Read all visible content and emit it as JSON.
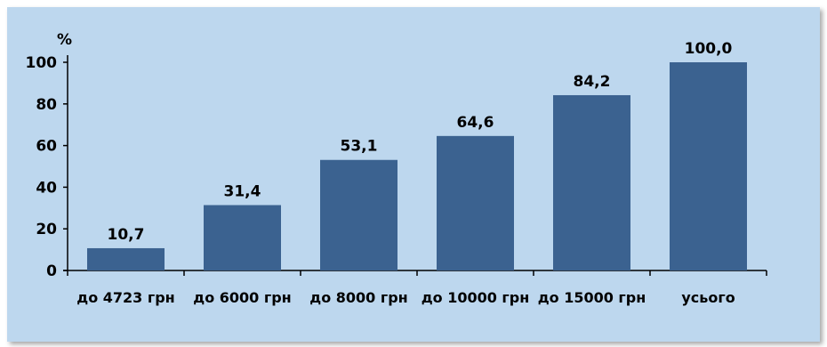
{
  "chart_data": {
    "type": "bar",
    "categories": [
      "до 4723 грн",
      "до 6000 грн",
      "до 8000 грн",
      "до 10000 грн",
      "до 15000 грн",
      "усього"
    ],
    "values": [
      10.7,
      31.4,
      53.1,
      64.6,
      84.2,
      100.0
    ],
    "value_labels": [
      "10,7",
      "31,4",
      "53,1",
      "64,6",
      "84,2",
      "100,0"
    ],
    "y_unit": "%",
    "ylim": [
      0,
      100
    ],
    "yticks": [
      0,
      20,
      40,
      60,
      80,
      100
    ],
    "grid": false,
    "colors": {
      "bar": "#3b6290",
      "background": "#bdd7ee",
      "axis": "#000000"
    }
  }
}
